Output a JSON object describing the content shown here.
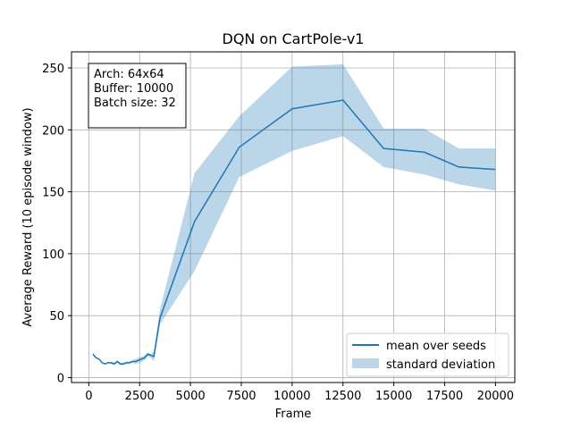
{
  "chart_data": {
    "type": "line",
    "title": "DQN on CartPole-v1",
    "xlabel": "Frame",
    "ylabel": "Average Reward (10 episode window)",
    "xlim": [
      -850,
      20950
    ],
    "ylim": [
      -4,
      263
    ],
    "xticks": [
      0,
      2500,
      5000,
      7500,
      10000,
      12500,
      15000,
      17500,
      20000
    ],
    "yticks": [
      0,
      50,
      100,
      150,
      200,
      250
    ],
    "grid": true,
    "legend_position": "lower-right",
    "annotation": [
      "Arch: 64x64",
      "Buffer: 10000",
      "Batch size: 32"
    ],
    "series": [
      {
        "name": "mean over seeds",
        "color": "#1f77b4",
        "x": [
          200,
          350,
          500,
          650,
          800,
          950,
          1100,
          1250,
          1400,
          1550,
          1700,
          1850,
          2000,
          2150,
          2300,
          2450,
          2600,
          2750,
          2900,
          3050,
          3200,
          3500,
          5200,
          7400,
          10000,
          12500,
          14500,
          16500,
          18200,
          20000
        ],
        "values": [
          19,
          16,
          15,
          12,
          11,
          12,
          12,
          11,
          13,
          11,
          11,
          12,
          12,
          13,
          13,
          14,
          15,
          16,
          19,
          18,
          17,
          48,
          126,
          186,
          217,
          224,
          185,
          182,
          170,
          168
        ]
      },
      {
        "name": "standard deviation",
        "color": "#1f77b4",
        "fill_opacity": 0.3,
        "x": [
          200,
          350,
          500,
          650,
          800,
          950,
          1100,
          1250,
          1400,
          1550,
          1700,
          1850,
          2000,
          2150,
          2300,
          2450,
          2600,
          2750,
          2900,
          3050,
          3200,
          3500,
          5200,
          7400,
          10000,
          12500,
          14500,
          16500,
          18200,
          20000
        ],
        "upper": [
          19,
          16,
          15,
          12,
          11,
          12,
          13,
          12,
          14,
          12,
          12,
          13,
          13,
          14,
          15,
          16,
          17,
          18,
          20,
          19,
          21,
          55,
          165,
          211,
          251,
          253,
          201,
          201,
          185,
          185
        ],
        "lower": [
          19,
          16,
          15,
          12,
          11,
          12,
          11,
          10,
          12,
          10,
          10,
          11,
          11,
          12,
          11,
          12,
          13,
          14,
          17,
          16,
          13,
          43,
          86,
          162,
          183,
          195,
          170,
          164,
          156,
          151
        ]
      }
    ]
  }
}
